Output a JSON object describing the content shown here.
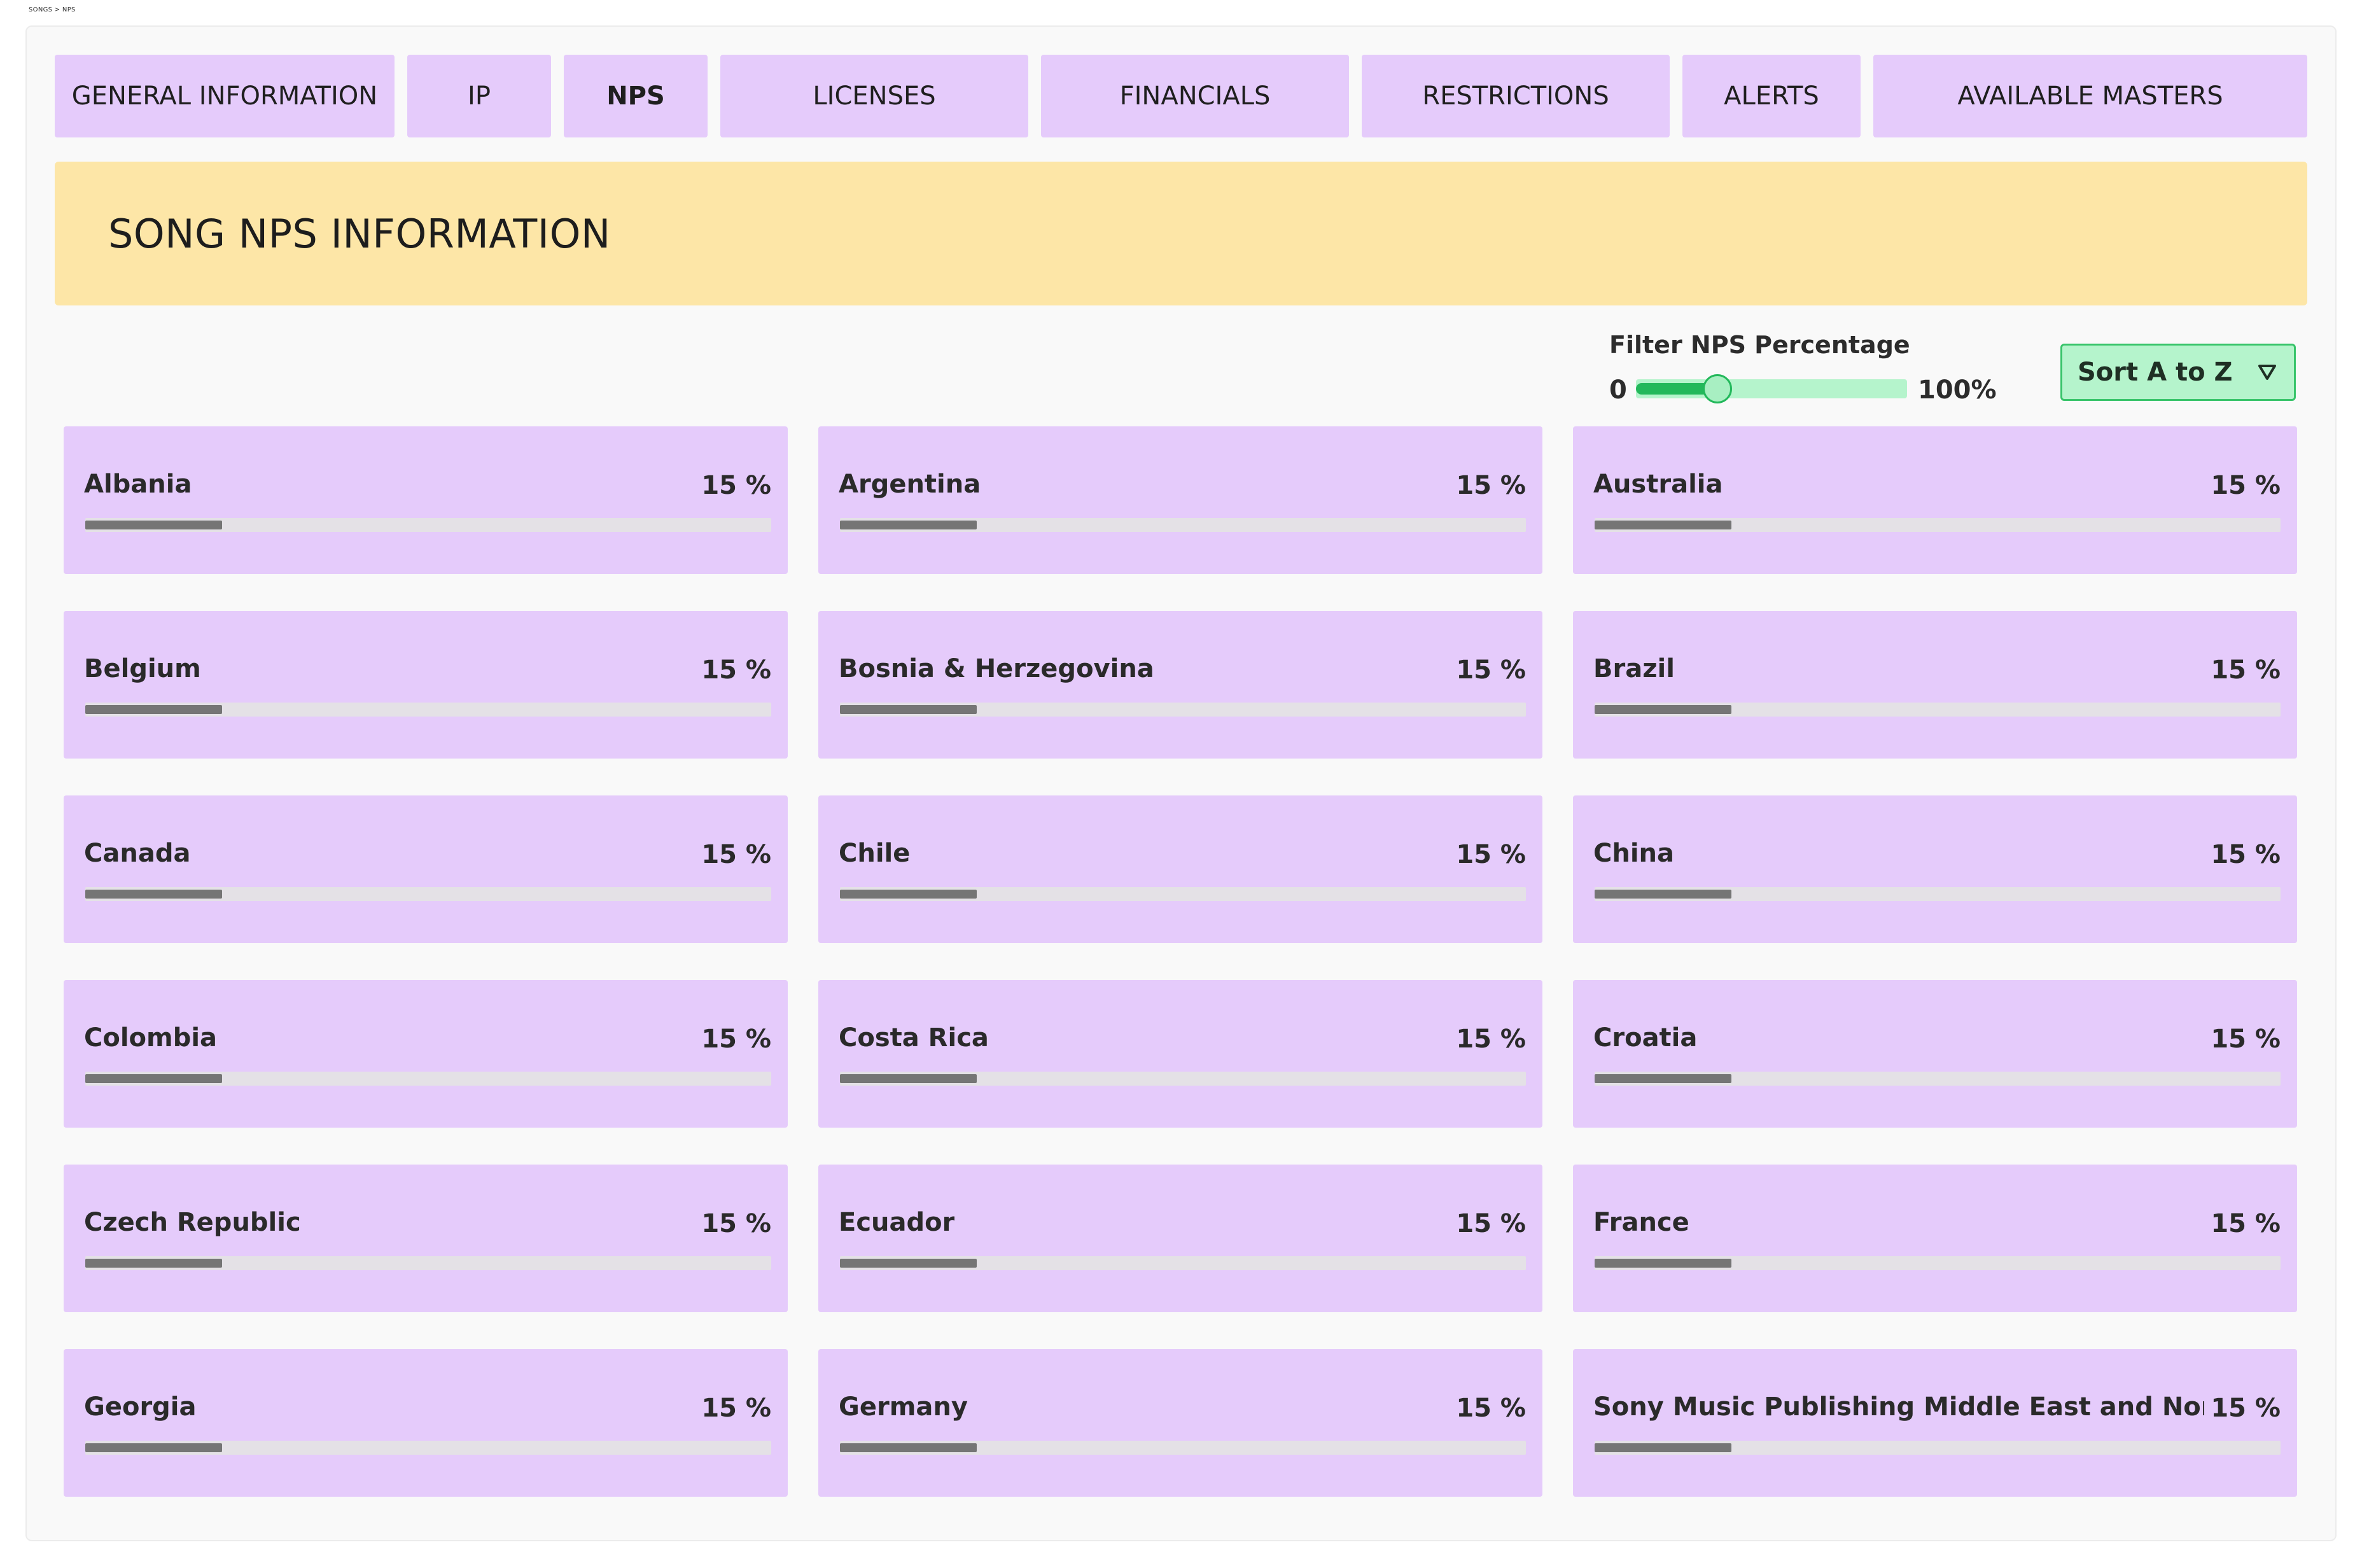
{
  "breadcrumb": "SONGS > NPS",
  "tabs": [
    {
      "label": "GENERAL INFORMATION",
      "active": false
    },
    {
      "label": "IP",
      "active": false
    },
    {
      "label": "NPS",
      "active": true
    },
    {
      "label": "LICENSES",
      "active": false
    },
    {
      "label": "FINANCIALS",
      "active": false
    },
    {
      "label": "RESTRICTIONS",
      "active": false
    },
    {
      "label": "ALERTS",
      "active": false
    },
    {
      "label": "AVAILABLE MASTERS",
      "active": false
    }
  ],
  "banner": {
    "title": "SONG NPS INFORMATION"
  },
  "filter": {
    "label": "Filter NPS Percentage",
    "min_label": "0",
    "max_label": "100%",
    "value_fraction": 0.3
  },
  "sort": {
    "label": "Sort A to Z",
    "icon": "caret-down-icon"
  },
  "cards": [
    {
      "country": "Albania",
      "percent_label": "15 %",
      "value": 15
    },
    {
      "country": "Argentina",
      "percent_label": "15 %",
      "value": 15
    },
    {
      "country": "Australia",
      "percent_label": "15 %",
      "value": 15
    },
    {
      "country": "Belgium",
      "percent_label": "15 %",
      "value": 15
    },
    {
      "country": "Bosnia & Herzegovina",
      "percent_label": "15 %",
      "value": 15
    },
    {
      "country": "Brazil",
      "percent_label": "15 %",
      "value": 15
    },
    {
      "country": "Canada",
      "percent_label": "15 %",
      "value": 15
    },
    {
      "country": "Chile",
      "percent_label": "15 %",
      "value": 15
    },
    {
      "country": "China",
      "percent_label": "15 %",
      "value": 15
    },
    {
      "country": "Colombia",
      "percent_label": "15 %",
      "value": 15
    },
    {
      "country": "Costa Rica",
      "percent_label": "15 %",
      "value": 15
    },
    {
      "country": "Croatia",
      "percent_label": "15 %",
      "value": 15
    },
    {
      "country": "Czech Republic",
      "percent_label": "15 %",
      "value": 15
    },
    {
      "country": "Ecuador",
      "percent_label": "15 %",
      "value": 15
    },
    {
      "country": "France",
      "percent_label": "15 %",
      "value": 15
    },
    {
      "country": "Georgia",
      "percent_label": "15 %",
      "value": 15
    },
    {
      "country": "Germany",
      "percent_label": "15 %",
      "value": 15
    },
    {
      "country": "Sony Music Publishing Middle East and North Africa",
      "percent_label": "15 %",
      "value": 15
    }
  ],
  "colors": {
    "tab_bg": "#e5cbfb",
    "card_bg": "#e5cbfb",
    "banner_bg": "#fde6a7",
    "accent_green": "#23b85b",
    "slider_track": "#b5f4cc",
    "bar_fill": "#757575",
    "bar_bg": "#e4e1e6"
  }
}
